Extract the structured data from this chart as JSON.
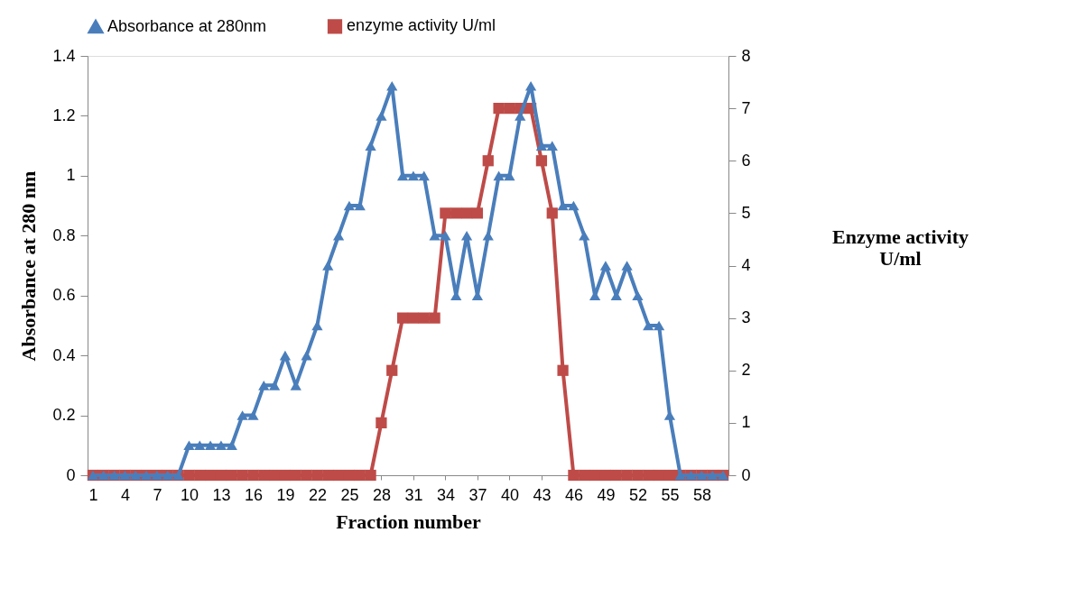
{
  "chart_data": {
    "type": "line",
    "xlabel": "Fraction number",
    "ylabel": "Absorbance at 280 nm",
    "y2label": "Enzyme activity U/ml",
    "categories": [
      "1",
      null,
      null,
      "4",
      null,
      null,
      "7",
      null,
      null,
      "10",
      null,
      null,
      "13",
      null,
      null,
      "16",
      null,
      null,
      "19",
      null,
      null,
      "22",
      null,
      null,
      "25",
      null,
      null,
      "28",
      null,
      null,
      "31",
      null,
      null,
      "34",
      null,
      null,
      "37",
      null,
      null,
      "40",
      null,
      null,
      "43",
      null,
      null,
      "46",
      null,
      null,
      "49",
      null,
      null,
      "52",
      null,
      null,
      "55",
      null,
      null,
      "58",
      null,
      null
    ],
    "series": [
      {
        "name": "Absorbance at 280nm",
        "color": "#4a7ebb",
        "marker": "triangle",
        "values": [
          0,
          0,
          0,
          0,
          0,
          0,
          0,
          0,
          0,
          0.1,
          0.1,
          0.1,
          0.1,
          0.1,
          0.2,
          0.2,
          0.3,
          0.3,
          0.4,
          0.3,
          0.4,
          0.5,
          0.7,
          0.8,
          0.9,
          0.9,
          1.1,
          1.2,
          1.3,
          1.0,
          1.0,
          1.0,
          0.8,
          0.8,
          0.6,
          0.8,
          0.6,
          0.8,
          1.0,
          1.0,
          1.2,
          1.3,
          1.1,
          1.1,
          0.9,
          0.9,
          0.8,
          0.6,
          0.7,
          0.6,
          0.7,
          0.6,
          0.5,
          0.5,
          0.2,
          0,
          0,
          0,
          0,
          0
        ]
      },
      {
        "name": "enzyme activity U/ml",
        "color": "#be4b48",
        "marker": "square",
        "axis": "y2",
        "values": [
          0,
          0,
          0,
          0,
          0,
          0,
          0,
          0,
          0,
          0,
          0,
          0,
          0,
          0,
          0,
          0,
          0,
          0,
          0,
          0,
          0,
          0,
          0,
          0,
          0,
          0,
          0,
          1,
          2,
          3,
          3,
          3,
          3,
          5,
          5,
          5,
          5,
          6,
          7,
          7,
          7,
          7,
          6,
          5,
          2,
          0,
          0,
          0,
          0,
          0,
          0,
          0,
          0,
          0,
          0,
          0,
          0,
          0,
          0,
          0
        ]
      }
    ],
    "ylim": [
      0,
      1.4
    ],
    "yticks": [
      0,
      0.2,
      0.4,
      0.6,
      0.8,
      1,
      1.2,
      1.4
    ],
    "y2lim": [
      0,
      8
    ],
    "y2ticks": [
      0,
      1,
      2,
      3,
      4,
      5,
      6,
      7,
      8
    ],
    "legend": "top",
    "grid": false,
    "line_style": "solid"
  }
}
